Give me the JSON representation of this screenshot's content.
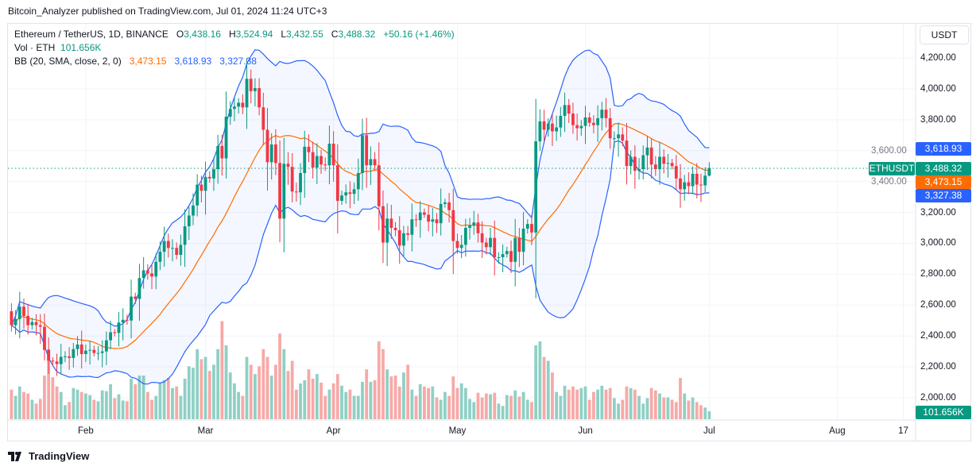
{
  "publisher_line": "Bitcoin_Analyzer published on TradingView.com, Jul 01, 2024 11:24 UTC+3",
  "legend": {
    "symbol": "Ethereum / TetherUS, 1D, BINANCE",
    "o_label": "O",
    "o": "3,438.16",
    "h_label": "H",
    "h": "3,524.94",
    "l_label": "L",
    "l": "3,432.55",
    "c_label": "C",
    "c": "3,488.32",
    "change": "+50.16 (+1.46%)",
    "vol_label": "Vol · ETH",
    "vol": "101.656K",
    "bb_label": "BB (20, SMA, close, 2, 0)",
    "bb_basis": "3,473.15",
    "bb_upper": "3,618.93",
    "bb_lower": "3,327.38"
  },
  "axis": {
    "currency": "USDT",
    "symbol_badge": "ETHUSDT",
    "last_price": "3,488.32",
    "upper_badge": "3,618.93",
    "basis_badge": "3,473.15",
    "lower_badge": "3,327.38",
    "volume_badge": "101.656K"
  },
  "brand": "TradingView",
  "colors": {
    "up": "#089981",
    "down": "#f23645",
    "bb_band": "#2962ff",
    "bb_basis": "#ff6d00",
    "up_volume": "#8fd0c5",
    "down_volume": "#f7a9a7"
  },
  "chart_data": {
    "type": "candlestick",
    "indicator": "Bollinger Bands (20, SMA, close, 2)",
    "y_ticks": [
      "4,200.00",
      "4,000.00",
      "3,800.00",
      "3,600.00",
      "3,400.00",
      "3,200.00",
      "3,000.00",
      "2,800.00",
      "2,600.00",
      "2,400.00",
      "2,200.00",
      "2,000.00"
    ],
    "ylim": [
      2000,
      4200
    ],
    "x_ticks": [
      "Feb",
      "Mar",
      "Apr",
      "May",
      "Jun",
      "Jul",
      "Aug",
      "17"
    ],
    "grid": true,
    "first_open": 2560,
    "last_candle": {
      "date": "2024-07-01",
      "open": 3438.16,
      "high": 3524.94,
      "low": 3432.55,
      "close": 3488.32,
      "volume_k": 101.656
    },
    "months": [
      {
        "month": "Jan",
        "start_day": 14,
        "close": [
          2470,
          2510,
          2590,
          2530,
          2470,
          2490,
          2470,
          2460,
          2310,
          2240,
          2235,
          2218,
          2265,
          2268,
          2258,
          2315,
          2345,
          2283
        ],
        "volume_k": [
          380,
          300,
          420,
          350,
          330,
          250,
          200,
          260,
          560,
          900,
          540,
          420,
          350,
          180,
          220,
          400,
          380,
          350
        ]
      },
      {
        "month": "Feb",
        "start_day": 1,
        "close": [
          2305,
          2310,
          2290,
          2290,
          2300,
          2372,
          2424,
          2420,
          2487,
          2505,
          2500,
          2655,
          2640,
          2775,
          2825,
          2805,
          2785,
          2880,
          2945,
          3015,
          2970,
          2970,
          2925,
          2990,
          3110,
          3180,
          3245,
          3380,
          3340
        ],
        "volume_k": [
          330,
          310,
          250,
          230,
          370,
          360,
          450,
          270,
          320,
          240,
          230,
          520,
          450,
          560,
          560,
          350,
          250,
          300,
          470,
          500,
          530,
          400,
          420,
          300,
          520,
          680,
          660,
          900,
          770
        ]
      },
      {
        "month": "Mar",
        "start_day": 1,
        "close": [
          3430,
          3420,
          3480,
          3630,
          3550,
          3820,
          3870,
          3885,
          3910,
          3880,
          4065,
          3985,
          4005,
          3880,
          3735,
          3525,
          3640,
          3520,
          3160,
          3515,
          3495,
          3335,
          3330,
          3455,
          3625,
          3590,
          3490,
          3565,
          3510,
          3505,
          3645
        ],
        "volume_k": [
          800,
          620,
          700,
          900,
          1260,
          950,
          600,
          460,
          350,
          300,
          800,
          700,
          580,
          680,
          900,
          800,
          560,
          700,
          1100,
          900,
          620,
          750,
          380,
          460,
          500,
          640,
          520,
          580,
          470,
          300,
          380
        ]
      },
      {
        "month": "Apr",
        "start_day": 1,
        "close": [
          3505,
          3275,
          3310,
          3330,
          3320,
          3350,
          3455,
          3700,
          3505,
          3545,
          3505,
          3240,
          3005,
          3160,
          3100,
          3085,
          2985,
          3065,
          3055,
          3155,
          3150,
          3200,
          3185,
          3140,
          3155,
          3130,
          3255,
          3265,
          3215,
          3015
        ],
        "volume_k": [
          460,
          580,
          430,
          350,
          380,
          300,
          300,
          480,
          640,
          480,
          500,
          1000,
          900,
          640,
          550,
          560,
          420,
          600,
          700,
          380,
          300,
          450,
          420,
          400,
          420,
          280,
          250,
          350,
          300,
          550
        ]
      },
      {
        "month": "May",
        "start_day": 1,
        "close": [
          2970,
          2990,
          3100,
          3115,
          3135,
          3065,
          3005,
          2975,
          3035,
          2910,
          2910,
          2930,
          2950,
          2880,
          3035,
          2945,
          3095,
          3125,
          3070,
          3660,
          3790,
          3735,
          3775,
          3725,
          3750,
          3825,
          3895,
          3840,
          3765,
          3745,
          3760
        ],
        "volume_k": [
          400,
          460,
          400,
          260,
          220,
          340,
          280,
          330,
          320,
          340,
          200,
          170,
          310,
          300,
          370,
          290,
          350,
          250,
          220,
          950,
          1000,
          800,
          750,
          600,
          350,
          300,
          430,
          380,
          420,
          380,
          400
        ]
      },
      {
        "month": "Jun",
        "start_day": 1,
        "close": [
          3815,
          3780,
          3765,
          3810,
          3865,
          3810,
          3680,
          3680,
          3705,
          3665,
          3500,
          3560,
          3470,
          3480,
          3570,
          3620,
          3510,
          3480,
          3560,
          3515,
          3520,
          3500,
          3420,
          3350,
          3395,
          3370,
          3450,
          3380,
          3375,
          3438
        ],
        "volume_k": [
          420,
          250,
          350,
          380,
          430,
          380,
          400,
          270,
          200,
          250,
          420,
          400,
          380,
          300,
          200,
          270,
          400,
          370,
          330,
          280,
          280,
          250,
          220,
          530,
          330,
          240,
          280,
          220,
          180,
          150
        ]
      }
    ]
  }
}
